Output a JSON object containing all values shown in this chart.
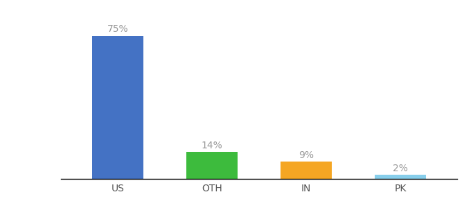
{
  "categories": [
    "US",
    "OTH",
    "IN",
    "PK"
  ],
  "values": [
    75,
    14,
    9,
    2
  ],
  "bar_colors": [
    "#4472c4",
    "#3dbb3d",
    "#f5a623",
    "#87ceeb"
  ],
  "labels": [
    "75%",
    "14%",
    "9%",
    "2%"
  ],
  "ylim": [
    0,
    85
  ],
  "background_color": "#ffffff",
  "label_fontsize": 10,
  "tick_fontsize": 10,
  "bar_width": 0.55
}
